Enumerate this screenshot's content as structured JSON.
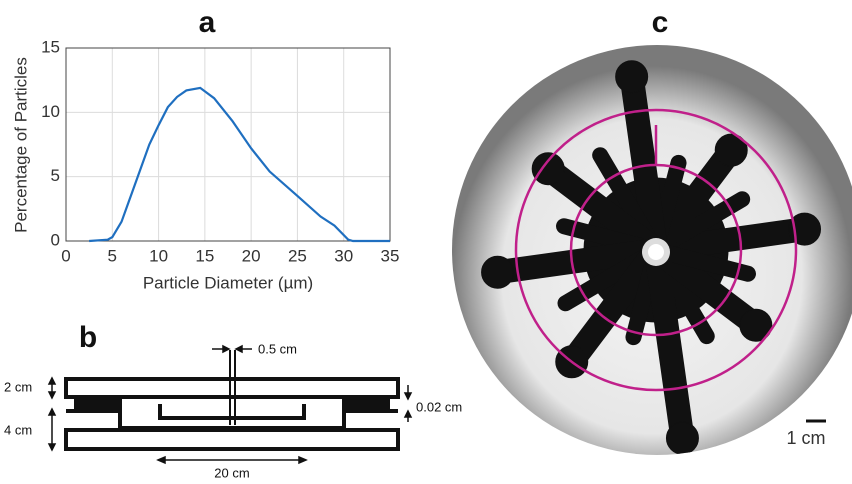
{
  "chart_data": {
    "type": "line",
    "title": "a",
    "x_label": "Particle Diameter (µm)",
    "y_label": "Percentage of Particles",
    "x": [
      2.5,
      4.5,
      5,
      6,
      7,
      8,
      9,
      10,
      11,
      12,
      13,
      14.5,
      16,
      18,
      20,
      22,
      25,
      27.5,
      29,
      30.5,
      31,
      35
    ],
    "values": [
      0,
      0.1,
      0.3,
      1.5,
      3.5,
      5.5,
      7.5,
      9,
      10.4,
      11.2,
      11.7,
      11.9,
      11.1,
      9.3,
      7.2,
      5.4,
      3.5,
      1.9,
      1.2,
      0.1,
      0,
      0
    ],
    "color": "#1f6fc0",
    "xlim": [
      0,
      35
    ],
    "ylim": [
      0,
      15
    ],
    "xticks": [
      0,
      5,
      10,
      15,
      20,
      25,
      30,
      35
    ],
    "yticks": [
      0,
      5,
      10,
      15
    ],
    "grid": true
  },
  "diagram": {
    "label": "b",
    "slit": "0.5 cm",
    "top_height": "2 cm",
    "bottom_height": "4 cm",
    "gap": "0.02 cm",
    "width": "20 cm"
  },
  "photo": {
    "label": "c",
    "scale": "1 cm"
  }
}
